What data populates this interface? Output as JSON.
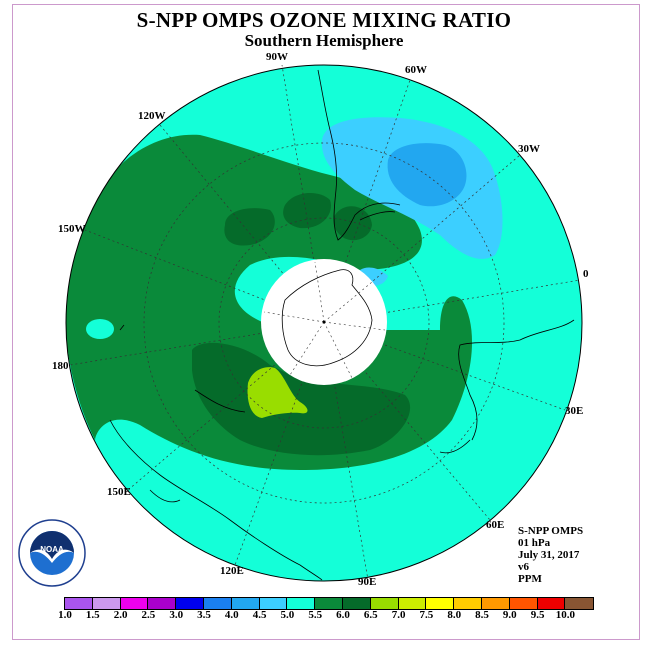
{
  "title": "S-NPP OMPS OZONE MIXING RATIO",
  "subtitle": "Southern Hemisphere",
  "longitude_labels": {
    "w90": "90W",
    "w60": "60W",
    "w30": "30W",
    "e0": "0",
    "e30": "30E",
    "e60": "60E",
    "e90": "90E",
    "e120": "120E",
    "e150": "150E",
    "e180": "180",
    "w150": "150W",
    "w120": "120W"
  },
  "info": {
    "instrument": "S-NPP OMPS",
    "level": "01 hPa",
    "date": "July 31, 2017",
    "version": "v6",
    "units": "PPM"
  },
  "logo_text": "NOAA",
  "colorbar": {
    "colors": [
      "#aa55ee",
      "#cc99ee",
      "#ee00ee",
      "#aa00cc",
      "#0000ee",
      "#1a7ff0",
      "#22a7f0",
      "#3ccfff",
      "#14ffd8",
      "#0a8a3a",
      "#056b2a",
      "#99dd00",
      "#ccee00",
      "#ffff00",
      "#ffcc00",
      "#ff9900",
      "#ff5500",
      "#ee0000",
      "#885533"
    ],
    "ticks": [
      "1.0",
      "1.5",
      "2.0",
      "2.5",
      "3.0",
      "3.5",
      "4.0",
      "4.5",
      "5.0",
      "5.5",
      "6.0",
      "6.5",
      "7.0",
      "7.5",
      "8.0",
      "8.5",
      "9.0",
      "9.5",
      "10.0"
    ]
  }
}
